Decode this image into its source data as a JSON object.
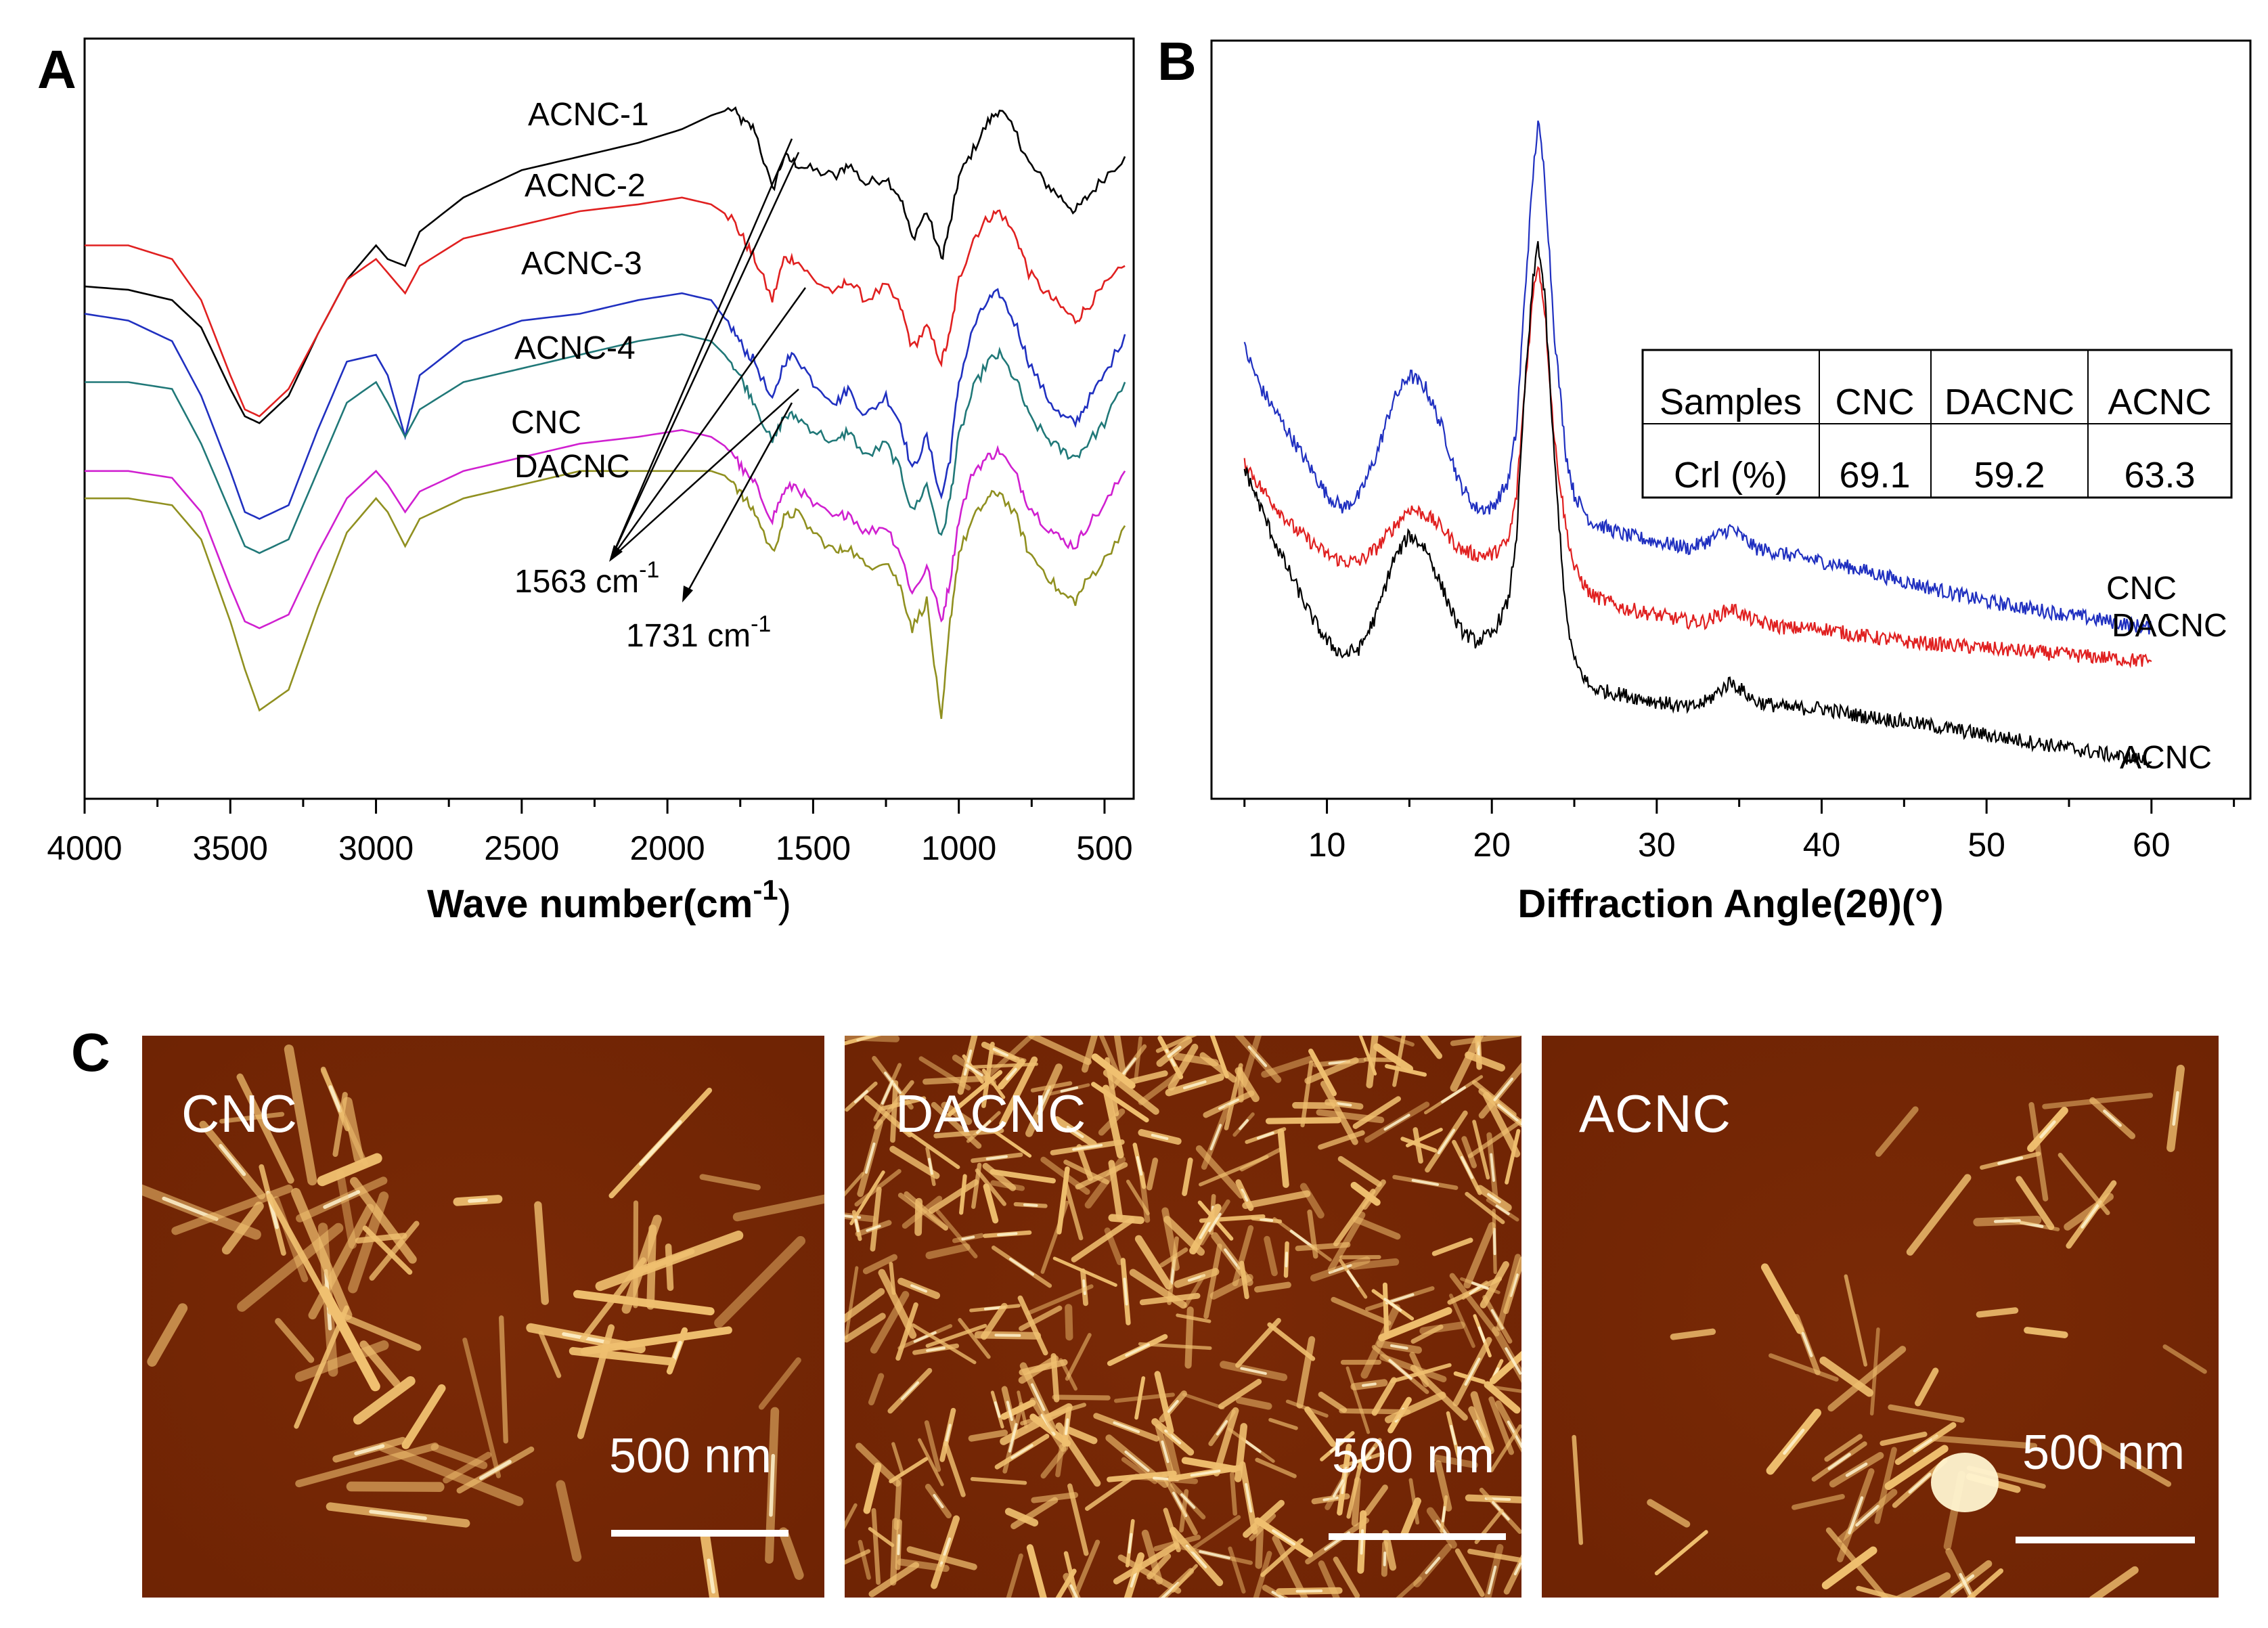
{
  "panel_letters": {
    "a": "A",
    "b": "B",
    "c": "C"
  },
  "chart_data": [
    {
      "type": "line",
      "panel": "A",
      "title": "",
      "xlabel": "Wave number(cm",
      "xlabel_sup": "-1",
      "xlabel_close": ")",
      "ylabel": "",
      "xlim": [
        4000,
        400
      ],
      "ylim": [
        0,
        100
      ],
      "xticks": [
        4000,
        3500,
        3000,
        2500,
        2000,
        1500,
        1000,
        500
      ],
      "series": [
        {
          "name": "ACNC-1",
          "color": "#000000",
          "x": [
            4000,
            3850,
            3700,
            3600,
            3500,
            3450,
            3400,
            3300,
            3200,
            3100,
            3000,
            2960,
            2900,
            2850,
            2700,
            2500,
            2300,
            2100,
            1950,
            1850,
            1780,
            1740,
            1700,
            1640,
            1600,
            1560,
            1500,
            1420,
            1380,
            1320,
            1250,
            1200,
            1160,
            1110,
            1060,
            1030,
            1000,
            950,
            900,
            860,
            800,
            760,
            700,
            650,
            600,
            560,
            500,
            430
          ],
          "y": [
            69,
            68.5,
            67,
            63,
            54,
            50,
            49,
            53,
            62,
            70,
            75,
            73,
            72,
            77,
            82,
            86,
            88,
            90,
            92,
            94,
            95,
            93,
            92,
            83,
            88,
            87,
            86,
            85,
            87,
            84,
            85,
            82,
            76,
            80,
            73,
            78,
            85,
            89,
            93,
            95,
            91,
            87,
            84,
            82,
            80,
            82,
            85,
            88
          ]
        },
        {
          "name": "ACNC-2",
          "color": "#e02020",
          "x": [
            4000,
            3850,
            3700,
            3600,
            3500,
            3450,
            3400,
            3300,
            3200,
            3100,
            3000,
            2960,
            2900,
            2850,
            2700,
            2500,
            2300,
            2100,
            1950,
            1850,
            1780,
            1740,
            1700,
            1640,
            1600,
            1560,
            1500,
            1420,
            1380,
            1320,
            1250,
            1200,
            1160,
            1110,
            1060,
            1030,
            1000,
            950,
            900,
            860,
            800,
            760,
            700,
            650,
            600,
            560,
            500,
            430
          ],
          "y": [
            75,
            75,
            73,
            67,
            56,
            51,
            50,
            54,
            62,
            70,
            73,
            71,
            68,
            72,
            76,
            78,
            80,
            81,
            82,
            81,
            79,
            76,
            73,
            67,
            73,
            73,
            70,
            68,
            70,
            67,
            69,
            66,
            60,
            63,
            58,
            62,
            70,
            76,
            79,
            80,
            76,
            71,
            68,
            66,
            64,
            66,
            69,
            72
          ]
        },
        {
          "name": "ACNC-3",
          "color": "#2030c0",
          "x": [
            4000,
            3850,
            3700,
            3600,
            3500,
            3450,
            3400,
            3300,
            3200,
            3100,
            3000,
            2960,
            2900,
            2850,
            2700,
            2500,
            2300,
            2100,
            1950,
            1850,
            1780,
            1740,
            1700,
            1640,
            1600,
            1560,
            1500,
            1420,
            1380,
            1320,
            1250,
            1200,
            1160,
            1110,
            1060,
            1030,
            1000,
            950,
            900,
            860,
            800,
            760,
            700,
            650,
            600,
            560,
            500,
            430
          ],
          "y": [
            65,
            64,
            61,
            53,
            42,
            36,
            35,
            37,
            48,
            58,
            59,
            56,
            47,
            56,
            61,
            64,
            65,
            67,
            68,
            67,
            63,
            60,
            58,
            52,
            58,
            59,
            55,
            52,
            54,
            50,
            53,
            49,
            42,
            47,
            38,
            44,
            55,
            63,
            67,
            68,
            63,
            58,
            53,
            50,
            49,
            52,
            56,
            62
          ]
        },
        {
          "name": "ACNC-4",
          "color": "#207878",
          "x": [
            4000,
            3850,
            3700,
            3600,
            3500,
            3450,
            3400,
            3300,
            3200,
            3100,
            3000,
            2960,
            2900,
            2850,
            2700,
            2500,
            2300,
            2100,
            1950,
            1850,
            1780,
            1740,
            1700,
            1640,
            1600,
            1560,
            1500,
            1420,
            1380,
            1320,
            1250,
            1200,
            1160,
            1110,
            1060,
            1030,
            1000,
            950,
            900,
            860,
            800,
            760,
            700,
            650,
            600,
            560,
            500,
            430
          ],
          "y": [
            55,
            55,
            54,
            46,
            36,
            31,
            30,
            32,
            42,
            52,
            55,
            52,
            47,
            51,
            55,
            57,
            59,
            61,
            62,
            61,
            58,
            55,
            52,
            46,
            50,
            50,
            48,
            46,
            48,
            44,
            46,
            42,
            36,
            40,
            32,
            38,
            47,
            54,
            58,
            59,
            55,
            50,
            47,
            45,
            44,
            46,
            49,
            55
          ]
        },
        {
          "name": "CNC",
          "color": "#d020d0",
          "x": [
            4000,
            3850,
            3700,
            3600,
            3500,
            3450,
            3400,
            3300,
            3200,
            3100,
            3000,
            2960,
            2900,
            2850,
            2700,
            2500,
            2300,
            2100,
            1950,
            1850,
            1780,
            1740,
            1700,
            1640,
            1600,
            1560,
            1500,
            1420,
            1380,
            1320,
            1250,
            1200,
            1160,
            1110,
            1060,
            1030,
            1000,
            950,
            900,
            860,
            800,
            760,
            700,
            650,
            600,
            560,
            500,
            430
          ],
          "y": [
            42,
            42,
            41,
            36,
            25,
            20,
            19,
            21,
            30,
            38,
            42,
            40,
            36,
            39,
            42,
            44,
            46,
            47,
            48,
            47,
            45,
            42,
            40,
            35,
            39,
            40,
            37,
            35,
            36,
            33,
            34,
            30,
            24,
            28,
            20,
            26,
            35,
            42,
            44,
            45,
            41,
            37,
            34,
            32,
            31,
            34,
            37,
            42
          ]
        },
        {
          "name": "DACNC",
          "color": "#909020",
          "x": [
            4000,
            3850,
            3700,
            3600,
            3500,
            3450,
            3400,
            3300,
            3200,
            3100,
            3000,
            2960,
            2900,
            2850,
            2700,
            2500,
            2300,
            2100,
            1950,
            1850,
            1780,
            1740,
            1700,
            1640,
            1600,
            1560,
            1500,
            1420,
            1380,
            1320,
            1250,
            1200,
            1160,
            1110,
            1060,
            1030,
            1000,
            950,
            900,
            860,
            800,
            760,
            700,
            650,
            600,
            560,
            500,
            430
          ],
          "y": [
            38,
            38,
            37,
            32,
            20,
            13,
            7,
            10,
            22,
            33,
            38,
            36,
            31,
            35,
            38,
            40,
            42,
            42,
            42,
            42,
            41,
            38,
            36,
            30,
            35,
            36,
            33,
            30,
            31,
            28,
            29,
            25,
            19,
            23,
            5,
            20,
            30,
            35,
            38,
            39,
            35,
            30,
            27,
            24,
            23,
            26,
            29,
            34
          ]
        }
      ],
      "series_labels": [
        "ACNC-1",
        "ACNC-2",
        "ACNC-3",
        "ACNC-4",
        "CNC",
        "DACNC"
      ],
      "annotations": [
        {
          "text": "1563 cm",
          "sup": "-1"
        },
        {
          "text": "1731 cm",
          "sup": "-1"
        }
      ]
    },
    {
      "type": "line",
      "panel": "B",
      "title": "",
      "xlabel": "Diffraction Angle(2θ)(°)",
      "ylabel": "",
      "xlim": [
        3,
        66
      ],
      "ylim": [
        0,
        100
      ],
      "xticks": [
        10,
        20,
        30,
        40,
        50,
        60
      ],
      "series": [
        {
          "name": "CNC",
          "color": "#2030c0",
          "x": [
            5,
            6,
            7,
            8,
            9,
            10,
            11,
            12,
            13,
            14,
            15,
            16,
            17,
            18,
            19,
            20,
            21,
            21.5,
            22,
            22.5,
            22.8,
            23.2,
            23.8,
            24.5,
            25,
            26,
            28,
            30,
            32,
            33,
            34.5,
            36,
            38,
            40,
            42,
            45,
            50,
            55,
            60
          ],
          "y": [
            62,
            56,
            52,
            48,
            44,
            40,
            38,
            40,
            46,
            54,
            58,
            56,
            50,
            42,
            38,
            38,
            42,
            50,
            70,
            88,
            96,
            88,
            64,
            46,
            40,
            36,
            34,
            33,
            32,
            33,
            35,
            32,
            31,
            30,
            29,
            27,
            24,
            22,
            20
          ]
        },
        {
          "name": "DACNC",
          "color": "#e02020",
          "x": [
            5,
            6,
            7,
            8,
            9,
            10,
            11,
            12,
            13,
            14,
            15,
            16,
            17,
            18,
            19,
            20,
            21,
            21.5,
            22,
            22.5,
            22.8,
            23.2,
            23.8,
            24.5,
            25,
            26,
            28,
            30,
            32,
            33,
            34.5,
            36,
            38,
            40,
            42,
            45,
            50,
            55,
            60
          ],
          "y": [
            45,
            41,
            38,
            35,
            33,
            31,
            30,
            30,
            32,
            35,
            38,
            37,
            35,
            32,
            31,
            31,
            33,
            40,
            56,
            70,
            75,
            68,
            48,
            35,
            29,
            25,
            23,
            22,
            21,
            21,
            23,
            21,
            20,
            20,
            19,
            18,
            17,
            16,
            15
          ]
        },
        {
          "name": "ACNC",
          "color": "#000000",
          "x": [
            5,
            6,
            7,
            8,
            9,
            10,
            11,
            12,
            13,
            14,
            15,
            16,
            17,
            18,
            19,
            20,
            21,
            21.5,
            22,
            22.5,
            22.8,
            23.2,
            23.8,
            24.5,
            25,
            26,
            28,
            30,
            32,
            33,
            34.5,
            36,
            38,
            40,
            42,
            45,
            50,
            55,
            60
          ],
          "y": [
            44,
            38,
            32,
            27,
            22,
            18,
            16,
            17,
            22,
            30,
            34,
            32,
            26,
            20,
            18,
            19,
            24,
            34,
            56,
            72,
            78,
            70,
            45,
            22,
            15,
            11,
            10,
            9,
            8,
            9,
            12,
            9,
            8,
            8,
            7,
            6,
            4,
            2,
            0
          ]
        }
      ],
      "series_labels": [
        "CNC",
        "DACNC",
        "ACNC"
      ],
      "inset_table": {
        "headers": [
          "Samples",
          "CNC",
          "DACNC",
          "ACNC"
        ],
        "row": [
          "Crl (%)",
          "69.1",
          "59.2",
          "63.3"
        ]
      }
    }
  ],
  "afm_panels": [
    {
      "label": "CNC",
      "scale": "500 nm"
    },
    {
      "label": "DACNC",
      "scale": "500 nm"
    },
    {
      "label": "ACNC",
      "scale": "500 nm"
    }
  ],
  "colors": {
    "afm_background": "#6e2304",
    "afm_fiber": "#f0c070",
    "afm_highlight": "#fff4d0"
  }
}
